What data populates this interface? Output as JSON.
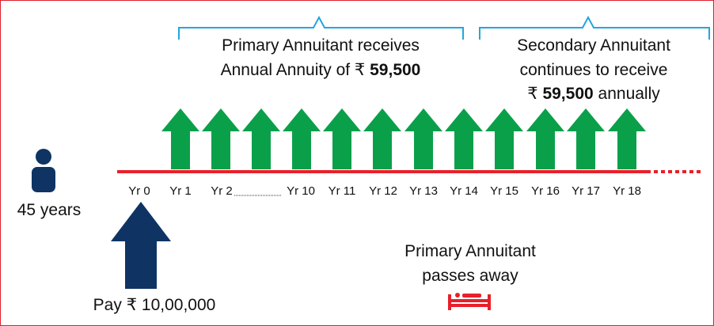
{
  "header": {
    "primary": {
      "line1": "Primary Annuitant receives",
      "line2": "Annual Annuity of ₹",
      "amount": "59,500"
    },
    "secondary": {
      "line1": "Secondary Annuitant",
      "line2": "continues to receive",
      "currency": "₹",
      "amount": "59,500",
      "suffix": "annually"
    }
  },
  "person": {
    "age": "45 years"
  },
  "timeline": {
    "years": [
      "Yr 0",
      "Yr 1",
      "Yr 2",
      "Yr 10",
      "Yr 11",
      "Yr 12",
      "Yr 13",
      "Yr 14",
      "Yr 15",
      "Yr 16",
      "Yr 17",
      "Yr 18"
    ]
  },
  "payment": "Pay ₹ 10,00,000",
  "event": {
    "line1": "Primary Annuitant",
    "line2": "passes away"
  }
}
